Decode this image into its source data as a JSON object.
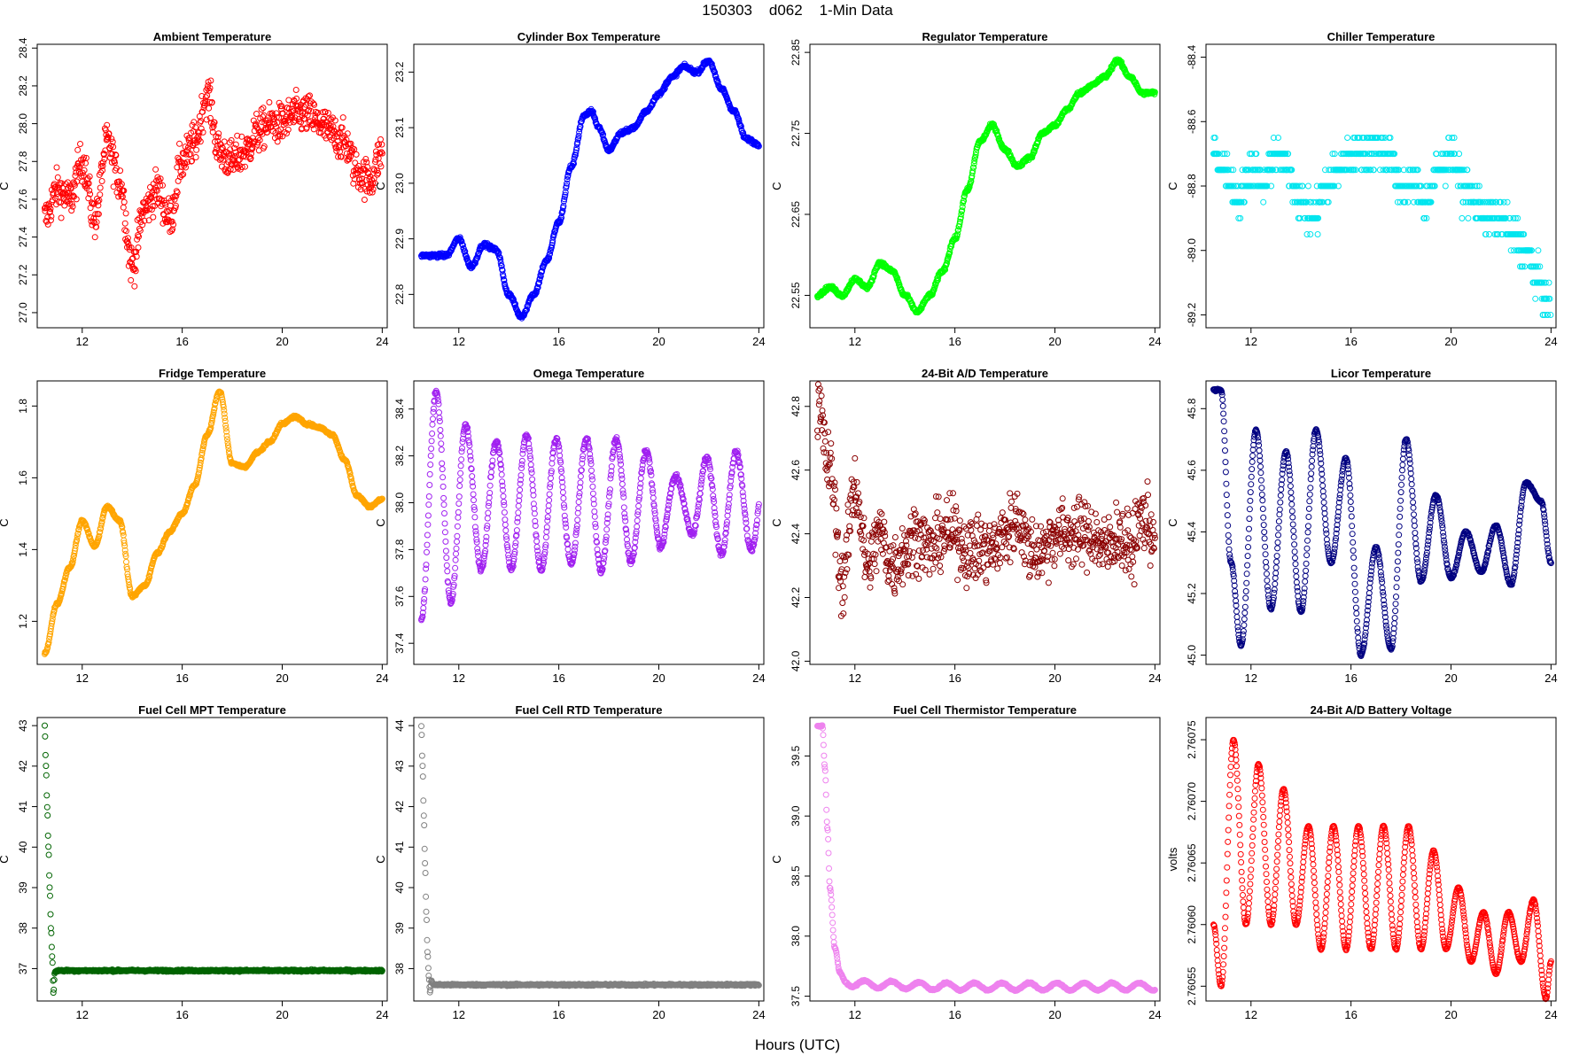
{
  "page": {
    "title": "150303    d062    1-Min Data",
    "xaxis_title": "Hours (UTC)"
  },
  "chart_data": [
    {
      "type": "scatter",
      "title": "Ambient Temperature",
      "ylabel": "C",
      "color": "#ff0000",
      "xlim": [
        10.2,
        24.2
      ],
      "ylim": [
        26.92,
        28.42
      ],
      "xticks": [
        12,
        16,
        20,
        24
      ],
      "yticks": [
        27.0,
        27.2,
        27.4,
        27.6,
        27.8,
        28.0,
        28.2,
        28.4
      ],
      "yticklabels": [
        "27.0",
        "27.2",
        "27.4",
        "27.6",
        "27.8",
        "28.0",
        "28.2",
        "28.4"
      ],
      "x": [
        10.5,
        11,
        11.5,
        12,
        12.5,
        13,
        13.5,
        14,
        14.5,
        15,
        15.5,
        16,
        16.5,
        17,
        17.5,
        18,
        18.5,
        19,
        19.5,
        20,
        20.5,
        21,
        21.5,
        22,
        22.5,
        23,
        23.5,
        24
      ],
      "y": [
        27.5,
        27.65,
        27.6,
        27.8,
        27.5,
        27.9,
        27.7,
        27.25,
        27.55,
        27.65,
        27.5,
        27.8,
        27.9,
        28.15,
        27.85,
        27.8,
        27.85,
        27.95,
        28.0,
        28.0,
        28.05,
        28.05,
        28.0,
        27.95,
        27.9,
        27.75,
        27.7,
        27.85
      ],
      "noise": 0.09
    },
    {
      "type": "scatter",
      "title": "Cylinder Box Temperature",
      "ylabel": "C",
      "color": "#0000ff",
      "xlim": [
        10.2,
        24.2
      ],
      "ylim": [
        22.74,
        23.25
      ],
      "xticks": [
        12,
        16,
        20,
        24
      ],
      "yticks": [
        22.8,
        22.9,
        23.0,
        23.1,
        23.2
      ],
      "yticklabels": [
        "22.8",
        "22.9",
        "23.0",
        "23.1",
        "23.2"
      ],
      "x": [
        10.5,
        11,
        11.5,
        12,
        12.5,
        13,
        13.5,
        14,
        14.5,
        15,
        15.5,
        16,
        16.5,
        17,
        17.3,
        17.6,
        18,
        18.5,
        19,
        19.5,
        20,
        20.5,
        21,
        21.5,
        22,
        22.5,
        23,
        23.5,
        24
      ],
      "y": [
        22.87,
        22.87,
        22.87,
        22.9,
        22.85,
        22.89,
        22.88,
        22.8,
        22.76,
        22.8,
        22.86,
        22.93,
        23.03,
        23.12,
        23.13,
        23.1,
        23.06,
        23.09,
        23.1,
        23.13,
        23.16,
        23.19,
        23.21,
        23.2,
        23.22,
        23.17,
        23.13,
        23.08,
        23.07
      ],
      "noise": 0.003
    },
    {
      "type": "scatter",
      "title": "Regulator Temperature",
      "ylabel": "C",
      "color": "#00ff00",
      "xlim": [
        10.2,
        24.2
      ],
      "ylim": [
        22.51,
        22.86
      ],
      "xticks": [
        12,
        16,
        20,
        24
      ],
      "yticks": [
        22.55,
        22.65,
        22.75,
        22.85
      ],
      "yticklabels": [
        "22.55",
        "22.65",
        "22.75",
        "22.85"
      ],
      "x": [
        10.5,
        11,
        11.5,
        12,
        12.5,
        13,
        13.5,
        14,
        14.5,
        15,
        15.5,
        16,
        16.5,
        17,
        17.5,
        18,
        18.5,
        19,
        19.5,
        20,
        20.5,
        21,
        21.5,
        22,
        22.5,
        23,
        23.5,
        24
      ],
      "y": [
        22.55,
        22.56,
        22.55,
        22.57,
        22.56,
        22.59,
        22.58,
        22.55,
        22.53,
        22.55,
        22.58,
        22.62,
        22.68,
        22.74,
        22.76,
        22.73,
        22.71,
        22.72,
        22.75,
        22.76,
        22.78,
        22.8,
        22.81,
        22.82,
        22.84,
        22.82,
        22.8,
        22.8
      ],
      "noise": 0.002
    },
    {
      "type": "scatter",
      "title": "Chiller Temperature",
      "ylabel": "C",
      "color": "#00e5ee",
      "xlim": [
        10.2,
        24.2
      ],
      "ylim": [
        -89.24,
        -88.36
      ],
      "xticks": [
        12,
        16,
        20,
        24
      ],
      "yticks": [
        -89.2,
        -89.0,
        -88.8,
        -88.6,
        -88.4
      ],
      "yticklabels": [
        "-89.2",
        "-89.0",
        "-88.8",
        "-88.6",
        "-88.4"
      ],
      "x": [
        10.5,
        11,
        11.5,
        12,
        12.5,
        13,
        13.5,
        14,
        14.5,
        15,
        15.5,
        16,
        16.5,
        17,
        17.5,
        18,
        18.5,
        19,
        19.5,
        20,
        20.5,
        21,
        21.5,
        22,
        22.5,
        23,
        23.5,
        24
      ],
      "y": [
        -88.7,
        -88.75,
        -88.85,
        -88.75,
        -88.8,
        -88.7,
        -88.75,
        -88.85,
        -88.9,
        -88.8,
        -88.75,
        -88.7,
        -88.7,
        -88.68,
        -88.7,
        -88.8,
        -88.8,
        -88.85,
        -88.75,
        -88.7,
        -88.8,
        -88.85,
        -88.9,
        -88.9,
        -88.95,
        -89.0,
        -89.1,
        -89.2
      ],
      "noise": 0.05,
      "quantum": 0.05
    },
    {
      "type": "scatter",
      "title": "Fridge Temperature",
      "ylabel": "C",
      "color": "#ffa500",
      "xlim": [
        10.2,
        24.2
      ],
      "ylim": [
        1.08,
        1.87
      ],
      "xticks": [
        12,
        16,
        20,
        24
      ],
      "yticks": [
        1.2,
        1.4,
        1.6,
        1.8
      ],
      "yticklabels": [
        "1.2",
        "1.4",
        "1.6",
        "1.8"
      ],
      "x": [
        10.5,
        11,
        11.5,
        12,
        12.5,
        13,
        13.5,
        14,
        14.5,
        15,
        15.5,
        16,
        16.5,
        17,
        17.5,
        18,
        18.5,
        19,
        19.5,
        20,
        20.5,
        21,
        21.5,
        22,
        22.5,
        23,
        23.5,
        24
      ],
      "y": [
        1.11,
        1.25,
        1.35,
        1.48,
        1.41,
        1.52,
        1.48,
        1.27,
        1.3,
        1.39,
        1.45,
        1.5,
        1.58,
        1.72,
        1.84,
        1.64,
        1.63,
        1.67,
        1.7,
        1.75,
        1.77,
        1.75,
        1.74,
        1.72,
        1.65,
        1.55,
        1.52,
        1.54
      ],
      "noise": 0.003
    },
    {
      "type": "scatter",
      "title": "Omega Temperature",
      "ylabel": "C",
      "color": "#a020f0",
      "xlim": [
        10.2,
        24.2
      ],
      "ylim": [
        37.31,
        38.52
      ],
      "xticks": [
        12,
        16,
        20,
        24
      ],
      "yticks": [
        37.4,
        37.6,
        37.8,
        38.0,
        38.2,
        38.4
      ],
      "yticklabels": [
        "37.4",
        "37.6",
        "37.8",
        "38.0",
        "38.2",
        "38.4"
      ],
      "x": [
        10.5,
        11,
        11.5,
        12,
        12.5,
        13,
        13.5,
        14,
        14.5,
        15,
        15.5,
        16,
        16.5,
        17,
        17.5,
        18,
        18.5,
        19,
        19.5,
        20,
        20.5,
        21,
        21.5,
        22,
        22.5,
        23,
        23.5,
        24
      ],
      "y": [
        38.0,
        38.0,
        38.0,
        38.0,
        38.0,
        38.0,
        38.0,
        38.0,
        38.0,
        38.0,
        38.0,
        38.0,
        38.0,
        38.0,
        38.0,
        38.0,
        38.0,
        38.0,
        38.0,
        38.0,
        38.0,
        38.0,
        38.0,
        38.0,
        38.0,
        38.0,
        38.0,
        38.0
      ],
      "osc_amp": [
        0.5,
        0.48,
        0.45,
        0.38,
        0.3,
        0.28,
        0.26,
        0.28,
        0.28,
        0.3,
        0.28,
        0.27,
        0.26,
        0.27,
        0.3,
        0.28,
        0.27,
        0.25,
        0.22,
        0.2,
        0.12,
        0.1,
        0.15,
        0.2,
        0.22,
        0.22,
        0.2,
        0.2
      ],
      "osc_period": 1.2,
      "noise": 0.01
    },
    {
      "type": "scatter",
      "title": "24-Bit A/D Temperature",
      "ylabel": "C",
      "color": "#8b0000",
      "xlim": [
        10.2,
        24.2
      ],
      "ylim": [
        41.99,
        42.88
      ],
      "xticks": [
        12,
        16,
        20,
        24
      ],
      "yticks": [
        42.0,
        42.2,
        42.4,
        42.6,
        42.8
      ],
      "yticklabels": [
        "42.0",
        "42.2",
        "42.4",
        "42.6",
        "42.8"
      ],
      "x": [
        10.5,
        11,
        11.5,
        12,
        12.5,
        13,
        13.5,
        14,
        14.5,
        15,
        15.5,
        16,
        16.5,
        17,
        17.5,
        18,
        18.5,
        19,
        19.5,
        20,
        20.5,
        21,
        21.5,
        22,
        22.5,
        23,
        23.5,
        24
      ],
      "y": [
        42.8,
        42.6,
        42.25,
        42.55,
        42.3,
        42.4,
        42.3,
        42.35,
        42.4,
        42.35,
        42.4,
        42.4,
        42.35,
        42.35,
        42.35,
        42.4,
        42.45,
        42.35,
        42.35,
        42.4,
        42.4,
        42.4,
        42.4,
        42.35,
        42.4,
        42.35,
        42.45,
        42.4
      ],
      "noise": 0.09
    },
    {
      "type": "scatter",
      "title": "Licor Temperature",
      "ylabel": "C",
      "color": "#000080",
      "xlim": [
        10.2,
        24.2
      ],
      "ylim": [
        44.97,
        45.89
      ],
      "xticks": [
        12,
        16,
        20,
        24
      ],
      "yticks": [
        45.0,
        45.2,
        45.4,
        45.6,
        45.8
      ],
      "yticklabels": [
        "45.0",
        "45.2",
        "45.4",
        "45.6",
        "45.8"
      ],
      "x": [
        10.5,
        10.8,
        11.2,
        11.6,
        12.2,
        12.8,
        13.4,
        14.0,
        14.6,
        15.2,
        15.8,
        16.4,
        17.0,
        17.6,
        18.2,
        18.8,
        19.4,
        20.0,
        20.6,
        21.2,
        21.8,
        22.4,
        23.0,
        23.6,
        24.0
      ],
      "y": [
        45.86,
        45.86,
        45.3,
        45.03,
        45.73,
        45.15,
        45.66,
        45.14,
        45.73,
        45.3,
        45.64,
        45.0,
        45.35,
        45.02,
        45.7,
        45.24,
        45.52,
        45.25,
        45.4,
        45.27,
        45.42,
        45.23,
        45.56,
        45.5,
        45.3
      ],
      "noise": 0.003,
      "smooth": true
    },
    {
      "type": "scatter",
      "title": "Fuel Cell MPT Temperature",
      "ylabel": "C",
      "color": "#006400",
      "xlim": [
        10.2,
        24.2
      ],
      "ylim": [
        36.2,
        43.2
      ],
      "xticks": [
        12,
        16,
        20,
        24
      ],
      "yticks": [
        37,
        38,
        39,
        40,
        41,
        42,
        43
      ],
      "yticklabels": [
        "37",
        "38",
        "39",
        "40",
        "41",
        "42",
        "43"
      ],
      "x": [
        10.5,
        10.55,
        10.6,
        10.65,
        10.7,
        10.75,
        10.8,
        10.85,
        10.9,
        11.0,
        12,
        16,
        20,
        24
      ],
      "y": [
        43.0,
        42.0,
        41.0,
        40.0,
        39.0,
        38.0,
        37.3,
        36.4,
        36.9,
        36.95,
        36.95,
        36.95,
        36.95,
        36.95
      ],
      "noise": 0.02
    },
    {
      "type": "scatter",
      "title": "Fuel Cell RTD Temperature",
      "ylabel": "C",
      "color": "#808080",
      "xlim": [
        10.2,
        24.2
      ],
      "ylim": [
        37.2,
        44.2
      ],
      "xticks": [
        12,
        16,
        20,
        24
      ],
      "yticks": [
        38,
        39,
        40,
        41,
        42,
        43,
        44
      ],
      "yticklabels": [
        "38",
        "39",
        "40",
        "41",
        "42",
        "43",
        "44"
      ],
      "x": [
        10.5,
        10.55,
        10.6,
        10.65,
        10.7,
        10.75,
        10.8,
        10.85,
        10.9,
        11.0,
        12,
        16,
        20,
        24
      ],
      "y": [
        44.0,
        43.0,
        41.8,
        40.6,
        39.4,
        38.4,
        37.8,
        37.4,
        37.7,
        37.6,
        37.6,
        37.6,
        37.6,
        37.6
      ],
      "noise": 0.02
    },
    {
      "type": "scatter",
      "title": "Fuel Cell Thermistor Temperature",
      "ylabel": "C",
      "color": "#ee82ee",
      "xlim": [
        10.2,
        24.2
      ],
      "ylim": [
        37.46,
        39.82
      ],
      "xticks": [
        12,
        16,
        20,
        24
      ],
      "yticks": [
        37.5,
        38.0,
        38.5,
        39.0,
        39.5
      ],
      "yticklabels": [
        "37.5",
        "38.0",
        "38.5",
        "39.0",
        "39.5"
      ],
      "x": [
        10.5,
        10.7,
        10.8,
        10.9,
        11.0,
        11.2,
        11.4,
        11.6,
        12,
        16,
        20,
        24
      ],
      "y": [
        39.75,
        39.75,
        39.4,
        38.9,
        38.4,
        37.9,
        37.7,
        37.63,
        37.6,
        37.58,
        37.58,
        37.58
      ],
      "osc_amp_tail": 0.03,
      "osc_period": 1.1,
      "noise": 0.005
    },
    {
      "type": "scatter",
      "title": "24-Bit A/D Battery Voltage",
      "ylabel": "volts",
      "color": "#ff0000",
      "xlim": [
        10.2,
        24.2
      ],
      "ylim": [
        2.760538,
        2.760768
      ],
      "xticks": [
        12,
        16,
        20,
        24
      ],
      "yticks": [
        2.76055,
        2.7606,
        2.76065,
        2.7607,
        2.76075
      ],
      "yticklabels": [
        "2.76055",
        "2.76060",
        "2.76065",
        "2.76070",
        "2.76075"
      ],
      "x": [
        10.5,
        10.8,
        11.3,
        11.8,
        12.3,
        12.8,
        13.3,
        13.8,
        14.3,
        14.8,
        15.3,
        15.8,
        16.3,
        16.8,
        17.3,
        17.8,
        18.3,
        18.8,
        19.3,
        19.8,
        20.3,
        20.8,
        21.3,
        21.8,
        22.3,
        22.8,
        23.3,
        23.8,
        24.0
      ],
      "y": [
        2.7606,
        2.76055,
        2.76075,
        2.7606,
        2.76073,
        2.7606,
        2.76071,
        2.7606,
        2.76068,
        2.76058,
        2.76068,
        2.76058,
        2.76068,
        2.76058,
        2.76068,
        2.76058,
        2.76068,
        2.76058,
        2.76066,
        2.76058,
        2.76063,
        2.76057,
        2.76061,
        2.76056,
        2.76061,
        2.76057,
        2.76062,
        2.76054,
        2.76057
      ],
      "noise": 5e-07,
      "smooth": true
    }
  ]
}
